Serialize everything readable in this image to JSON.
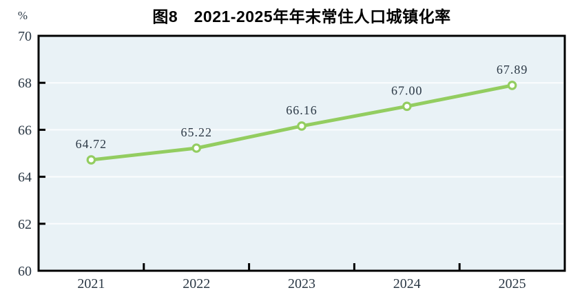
{
  "chart_data": {
    "type": "line",
    "title": "图8　2021-2025年年末常住人口城镇化率",
    "unit_label": "%",
    "categories": [
      "2021",
      "2022",
      "2023",
      "2024",
      "2025"
    ],
    "series": [
      {
        "name": "年末常住人口城镇化率",
        "values": [
          64.72,
          65.22,
          66.16,
          67.0,
          67.89
        ],
        "labels": [
          "64.72",
          "65.22",
          "66.16",
          "67.00",
          "67.89"
        ]
      }
    ],
    "ylim": [
      60,
      70
    ],
    "yticks": [
      60,
      62,
      64,
      66,
      68,
      70
    ],
    "grid": true,
    "legend": "none",
    "colors": {
      "line": "#93cd60",
      "marker_fill": "#ffffff",
      "plot_background": "#e9f2f6",
      "gridline": "#fbfdfe",
      "axis": "#000000",
      "text": "#2b3845",
      "title": "#000000"
    }
  }
}
